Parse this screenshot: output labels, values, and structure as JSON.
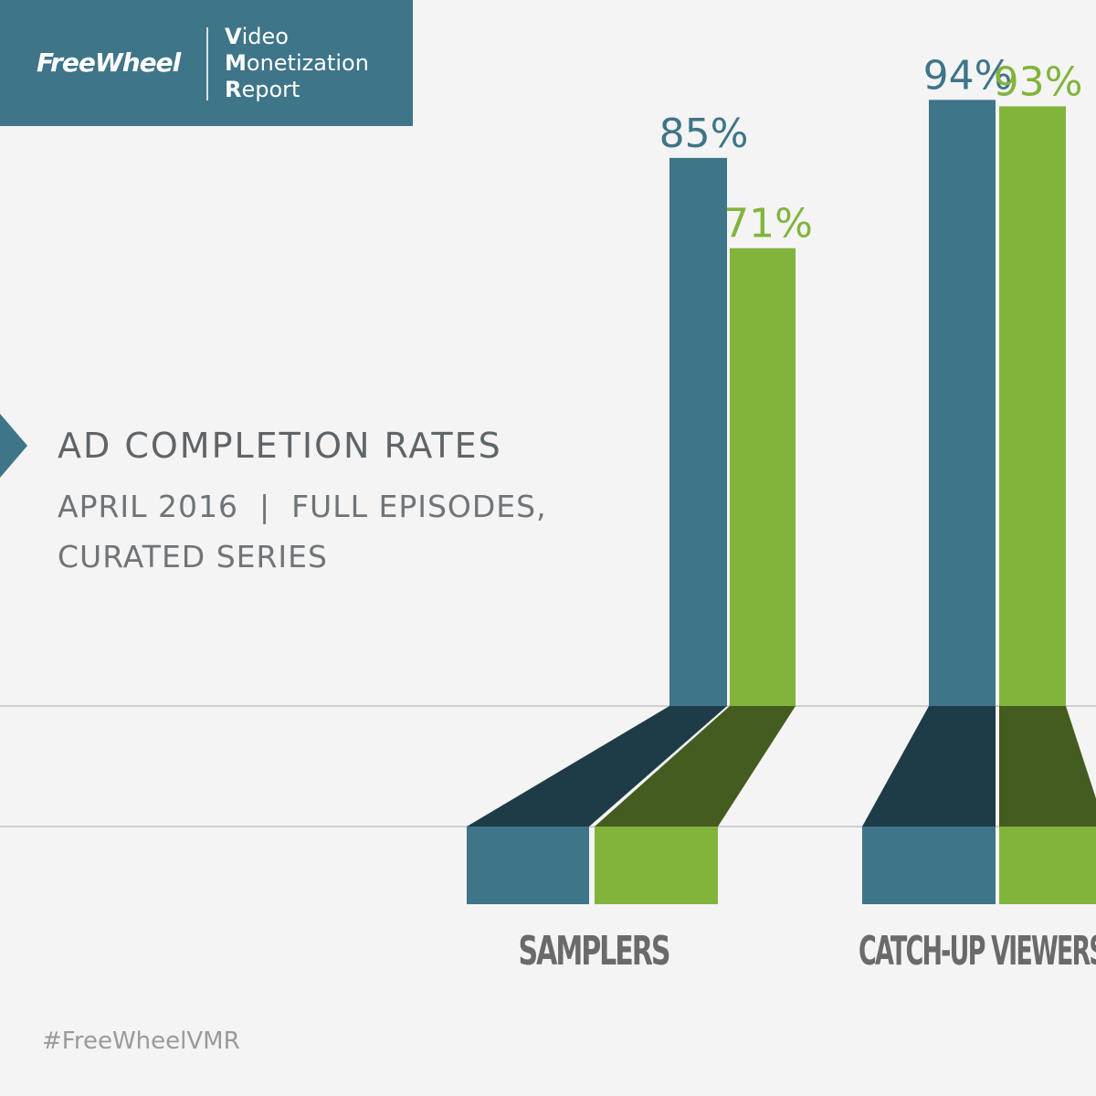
{
  "brand": {
    "logo": "FreeWheel",
    "report_lines": [
      {
        "initial": "V",
        "rest": "ideo"
      },
      {
        "initial": "M",
        "rest": "onetization"
      },
      {
        "initial": "R",
        "rest": "eport"
      }
    ]
  },
  "hashtag": "#FreeWheelVMR",
  "colors": {
    "blue": "#3e7589",
    "blue_dark": "#1e3c47",
    "green": "#82b43c",
    "green_dark": "#445c1f",
    "header_bg": "#3e7589"
  },
  "chart_data": {
    "type": "bar",
    "title": "AD COMPLETION RATES",
    "subtitle_line1": "APRIL 2016  |  FULL EPISODES,",
    "subtitle_line2": "CURATED SERIES",
    "categories": [
      "SAMPLERS",
      "CATCH-UP VIEWERS"
    ],
    "series": [
      {
        "values": [
          85,
          94
        ],
        "labels": [
          "85%",
          "94%"
        ]
      },
      {
        "values": [
          71,
          93
        ],
        "labels": [
          "71%",
          "93%"
        ]
      }
    ],
    "ylim": [
      0,
      100
    ],
    "grid": false,
    "legend": "none"
  }
}
